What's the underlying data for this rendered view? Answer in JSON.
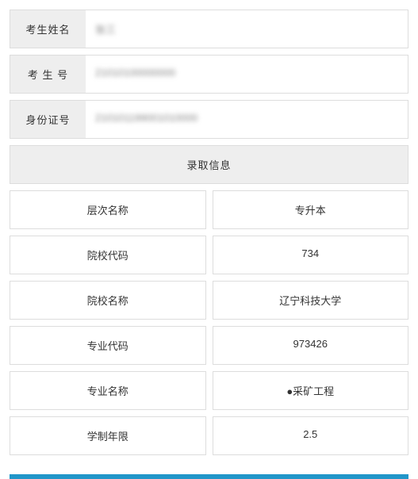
{
  "student": {
    "name_label": "考生姓名",
    "name_value": "张三",
    "id_label": "考 生 号",
    "id_value": "21010100000000",
    "idcard_label": "身份证号",
    "idcard_value": "210101199001010000"
  },
  "admission": {
    "section_title": "录取信息",
    "rows": [
      {
        "label": "层次名称",
        "value": "专升本"
      },
      {
        "label": "院校代码",
        "value": "734"
      },
      {
        "label": "院校名称",
        "value": "辽宁科技大学"
      },
      {
        "label": "专业代码",
        "value": "973426"
      },
      {
        "label": "专业名称",
        "value": "●采矿工程"
      },
      {
        "label": "学制年限",
        "value": "2.5"
      }
    ]
  },
  "colors": {
    "border": "#dddddd",
    "label_bg": "#eeeeee",
    "accent": "#2196c9"
  }
}
